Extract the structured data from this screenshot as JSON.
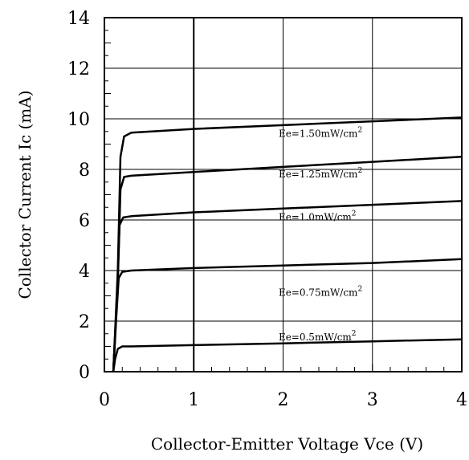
{
  "chart_data": {
    "type": "line",
    "title": "",
    "xlabel": "Collector-Emitter Voltage Vce (V)",
    "ylabel": "Collector Current Ic (mA)",
    "xlim": [
      0,
      4
    ],
    "ylim": [
      0,
      14
    ],
    "x_ticks": [
      "0",
      "1",
      "2",
      "3",
      "4"
    ],
    "y_ticks": [
      "0",
      "2",
      "4",
      "6",
      "8",
      "10",
      "12",
      "14"
    ],
    "grid": true,
    "series": [
      {
        "name": "Ee=1.50mW/cm²",
        "label_prefix": "Ee=1.50mW/cm",
        "x": [
          0.1,
          0.15,
          0.18,
          0.22,
          0.3,
          1,
          2,
          3,
          4
        ],
        "y": [
          0,
          4,
          8.5,
          9.3,
          9.45,
          9.6,
          9.75,
          9.9,
          10.05
        ]
      },
      {
        "name": "Ee=1.25mW/cm²",
        "label_prefix": "Ee=1.25mW/cm",
        "x": [
          0.1,
          0.15,
          0.18,
          0.22,
          0.3,
          1,
          2,
          3,
          4
        ],
        "y": [
          0,
          3.5,
          7.2,
          7.7,
          7.75,
          7.9,
          8.1,
          8.3,
          8.5
        ]
      },
      {
        "name": "Ee=1.0mW/cm²",
        "label_prefix": "Ee=1.0mW/cm",
        "x": [
          0.1,
          0.14,
          0.17,
          0.21,
          0.3,
          1,
          2,
          3,
          4
        ],
        "y": [
          0,
          3,
          5.8,
          6.1,
          6.15,
          6.3,
          6.45,
          6.6,
          6.75
        ]
      },
      {
        "name": "Ee=0.75mW/cm²",
        "label_prefix": "Ee=0.75mW/cm",
        "x": [
          0.1,
          0.13,
          0.16,
          0.2,
          0.3,
          1,
          2,
          3,
          4
        ],
        "y": [
          0,
          2,
          3.7,
          3.95,
          4.0,
          4.1,
          4.2,
          4.3,
          4.45
        ]
      },
      {
        "name": "Ee=0.5mW/cm²",
        "label_prefix": "Ee=0.5mW/cm",
        "x": [
          0.1,
          0.12,
          0.15,
          0.2,
          0.3,
          1,
          2,
          3,
          4
        ],
        "y": [
          0,
          0.5,
          0.9,
          1.0,
          1.0,
          1.05,
          1.12,
          1.2,
          1.28
        ]
      }
    ],
    "colors": {
      "line": "#000000",
      "grid": "#000000",
      "background": "#ffffff"
    }
  }
}
